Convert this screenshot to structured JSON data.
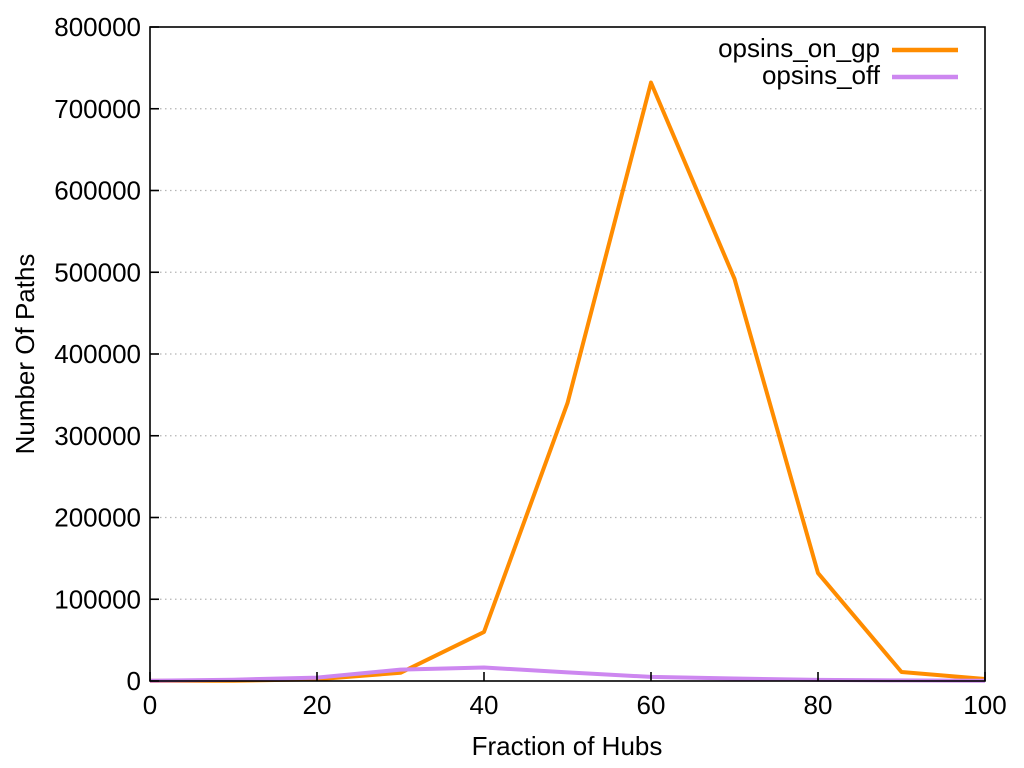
{
  "chart_data": {
    "type": "line",
    "title": "",
    "xlabel": "Fraction of Hubs",
    "ylabel": "Number Of Paths",
    "xlim": [
      0,
      100
    ],
    "ylim": [
      0,
      800000
    ],
    "xticks": [
      0,
      20,
      40,
      60,
      80,
      100
    ],
    "yticks": [
      0,
      100000,
      200000,
      300000,
      400000,
      500000,
      600000,
      700000,
      800000
    ],
    "grid": {
      "horizontal": true,
      "vertical": false,
      "style": "dotted",
      "color": "#b5b5b5"
    },
    "legend": {
      "position": "top-right"
    },
    "axis_color": "#000000",
    "background": "#ffffff",
    "x": [
      0,
      10,
      20,
      30,
      40,
      50,
      60,
      70,
      80,
      90,
      100
    ],
    "series": [
      {
        "name": "opsins_on_gp",
        "color": "#ff8c00",
        "values": [
          100,
          300,
          2200,
          10000,
          60000,
          340000,
          732000,
          492000,
          132000,
          11000,
          2500
        ]
      },
      {
        "name": "opsins_off",
        "color": "#cd87f0",
        "values": [
          300,
          1600,
          4100,
          14000,
          16500,
          10500,
          5000,
          3000,
          1300,
          700,
          400
        ]
      }
    ]
  }
}
